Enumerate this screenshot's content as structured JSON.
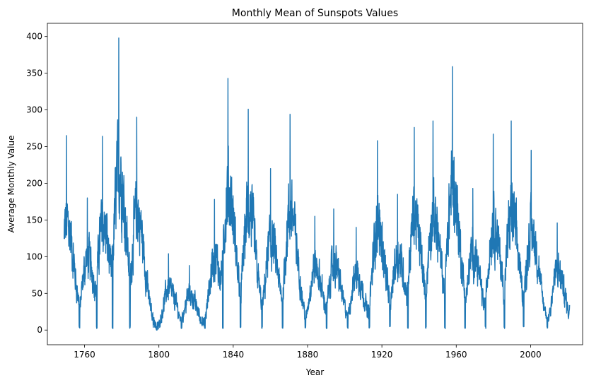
{
  "chart_data": {
    "type": "line",
    "title": "Monthly Mean of Sunspots Values",
    "xlabel": "Year",
    "ylabel": "Average Monthly Value",
    "xlim": [
      1740,
      2028
    ],
    "ylim": [
      -20,
      418
    ],
    "xticks": [
      1760,
      1800,
      1840,
      1880,
      1920,
      1960,
      2000
    ],
    "yticks": [
      0,
      50,
      100,
      150,
      200,
      250,
      300,
      350,
      400
    ],
    "grid": false,
    "legend": "none",
    "color": "#1f77b4",
    "cycle_peaks": [
      {
        "year": 1750.3,
        "peak": 265
      },
      {
        "year": 1761.5,
        "peak": 180
      },
      {
        "year": 1769.7,
        "peak": 264
      },
      {
        "year": 1778.4,
        "peak": 398
      },
      {
        "year": 1788.1,
        "peak": 290
      },
      {
        "year": 1805.2,
        "peak": 104
      },
      {
        "year": 1816.4,
        "peak": 88
      },
      {
        "year": 1829.9,
        "peak": 178
      },
      {
        "year": 1837.2,
        "peak": 343
      },
      {
        "year": 1848.1,
        "peak": 301
      },
      {
        "year": 1860.1,
        "peak": 220
      },
      {
        "year": 1870.6,
        "peak": 294
      },
      {
        "year": 1883.9,
        "peak": 155
      },
      {
        "year": 1894.1,
        "peak": 165
      },
      {
        "year": 1906.2,
        "peak": 140
      },
      {
        "year": 1917.6,
        "peak": 258
      },
      {
        "year": 1928.4,
        "peak": 185
      },
      {
        "year": 1937.4,
        "peak": 276
      },
      {
        "year": 1947.5,
        "peak": 285
      },
      {
        "year": 1957.9,
        "peak": 359
      },
      {
        "year": 1968.9,
        "peak": 193
      },
      {
        "year": 1979.9,
        "peak": 267
      },
      {
        "year": 1989.6,
        "peak": 285
      },
      {
        "year": 2000.3,
        "peak": 245
      },
      {
        "year": 2014.3,
        "peak": 146
      }
    ],
    "x_start": 1749.0,
    "x_end": 2021.0,
    "end_value": 34
  }
}
